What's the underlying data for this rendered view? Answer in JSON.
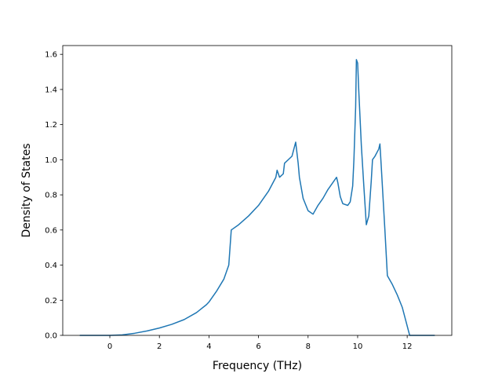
{
  "chart_data": {
    "type": "line",
    "title": "",
    "xlabel": "Frequency (THz)",
    "ylabel": "Density of States",
    "xlim": [
      -1.9,
      13.8
    ],
    "ylim": [
      0.0,
      1.65
    ],
    "xticks": [
      0,
      2,
      4,
      6,
      8,
      10,
      12
    ],
    "xtick_labels": [
      "0",
      "2",
      "4",
      "6",
      "8",
      "10",
      "12"
    ],
    "yticks": [
      0.0,
      0.2,
      0.4,
      0.6,
      0.8,
      1.0,
      1.2,
      1.4,
      1.6
    ],
    "ytick_labels": [
      "0.0",
      "0.2",
      "0.4",
      "0.6",
      "0.8",
      "1.0",
      "1.2",
      "1.4",
      "1.6"
    ],
    "grid": false,
    "legend": "none",
    "line_color": "#1f77b4",
    "series": [
      {
        "x": [
          -1.2,
          -0.5,
          0.0,
          0.5,
          1.0,
          1.5,
          2.0,
          2.5,
          3.0,
          3.5,
          3.9,
          4.0,
          4.3,
          4.6,
          4.8,
          4.9,
          5.2,
          5.6,
          6.0,
          6.4,
          6.7,
          6.75,
          6.85,
          7.0,
          7.05,
          7.2,
          7.35,
          7.5,
          7.6,
          7.65,
          7.8,
          8.0,
          8.2,
          8.4,
          8.6,
          8.8,
          9.0,
          9.15,
          9.2,
          9.3,
          9.4,
          9.6,
          9.7,
          9.8,
          9.85,
          9.92,
          9.95,
          10.0,
          10.05,
          10.15,
          10.25,
          10.35,
          10.45,
          10.55,
          10.6,
          10.7,
          10.85,
          10.9,
          10.95,
          11.1,
          11.2,
          11.4,
          11.6,
          11.8,
          11.95,
          12.1,
          12.5,
          13.1
        ],
        "y": [
          0.0,
          0.0,
          0.0,
          0.003,
          0.012,
          0.025,
          0.042,
          0.063,
          0.09,
          0.13,
          0.175,
          0.19,
          0.25,
          0.32,
          0.4,
          0.6,
          0.63,
          0.68,
          0.74,
          0.82,
          0.9,
          0.94,
          0.9,
          0.92,
          0.98,
          1.0,
          1.02,
          1.1,
          0.98,
          0.9,
          0.78,
          0.71,
          0.69,
          0.74,
          0.78,
          0.83,
          0.87,
          0.9,
          0.87,
          0.79,
          0.75,
          0.74,
          0.76,
          0.85,
          1.0,
          1.3,
          1.57,
          1.55,
          1.38,
          1.08,
          0.85,
          0.63,
          0.68,
          0.88,
          1.0,
          1.02,
          1.06,
          1.09,
          0.97,
          0.6,
          0.34,
          0.29,
          0.23,
          0.16,
          0.08,
          0.0,
          0.0,
          0.0
        ]
      }
    ]
  }
}
